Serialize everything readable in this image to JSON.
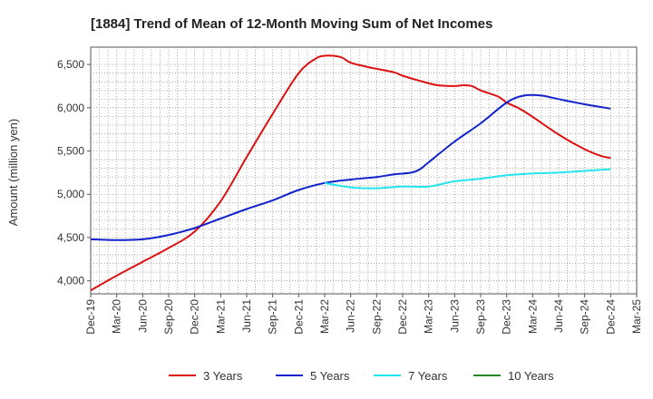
{
  "chart_data": {
    "type": "line",
    "title": "[1884]  Trend of Mean of 12-Month Moving Sum of Net Incomes",
    "ylabel": "Amount (million yen)",
    "xlabel": "",
    "ylim": [
      3850,
      6700
    ],
    "yticks": [
      4000,
      4500,
      5000,
      5500,
      6000,
      6500
    ],
    "ytick_labels": [
      "4,000",
      "4,500",
      "5,000",
      "5,500",
      "6,000",
      "6,500"
    ],
    "xtick_labels": [
      "Dec-19",
      "Mar-20",
      "Jun-20",
      "Sep-20",
      "Dec-20",
      "Mar-21",
      "Jun-21",
      "Sep-21",
      "Dec-21",
      "Mar-22",
      "Jun-22",
      "Sep-22",
      "Dec-22",
      "Mar-23",
      "Jun-23",
      "Sep-23",
      "Dec-23",
      "Mar-24",
      "Jun-24",
      "Sep-24",
      "Dec-24",
      "Mar-25"
    ],
    "grid": true,
    "legend_position": "bottom",
    "series": [
      {
        "name": "3 Years",
        "color": "#dd1111",
        "points": [
          [
            "Dec-19",
            3890
          ],
          [
            "Mar-20",
            4060
          ],
          [
            "Jun-20",
            4220
          ],
          [
            "Sep-20",
            4380
          ],
          [
            "Dec-20",
            4570
          ],
          [
            "Mar-21",
            4920
          ],
          [
            "Jun-21",
            5430
          ],
          [
            "Sep-21",
            5930
          ],
          [
            "Dec-21",
            6400
          ],
          [
            "Feb-22",
            6570
          ],
          [
            "Mar-22",
            6600
          ],
          [
            "Apr-22",
            6600
          ],
          [
            "May-22",
            6580
          ],
          [
            "Jun-22",
            6520
          ],
          [
            "Aug-22",
            6470
          ],
          [
            "Sep-22",
            6450
          ],
          [
            "Nov-22",
            6410
          ],
          [
            "Dec-22",
            6370
          ],
          [
            "Feb-23",
            6310
          ],
          [
            "Apr-23",
            6260
          ],
          [
            "Jun-23",
            6250
          ],
          [
            "Jul-23",
            6260
          ],
          [
            "Aug-23",
            6250
          ],
          [
            "Sep-23",
            6200
          ],
          [
            "Nov-23",
            6130
          ],
          [
            "Dec-23",
            6060
          ],
          [
            "Feb-24",
            5960
          ],
          [
            "Jun-24",
            5690
          ],
          [
            "Sep-24",
            5520
          ],
          [
            "Nov-24",
            5440
          ],
          [
            "Dec-24",
            5420
          ]
        ]
      },
      {
        "name": "5 Years",
        "color": "#1122cc",
        "points": [
          [
            "Dec-19",
            4480
          ],
          [
            "Mar-20",
            4470
          ],
          [
            "Jun-20",
            4480
          ],
          [
            "Sep-20",
            4530
          ],
          [
            "Dec-20",
            4610
          ],
          [
            "Mar-21",
            4720
          ],
          [
            "Jun-21",
            4830
          ],
          [
            "Sep-21",
            4930
          ],
          [
            "Dec-21",
            5050
          ],
          [
            "Mar-22",
            5130
          ],
          [
            "Jun-22",
            5170
          ],
          [
            "Sep-22",
            5200
          ],
          [
            "Nov-22",
            5230
          ],
          [
            "Jan-23",
            5250
          ],
          [
            "Feb-23",
            5290
          ],
          [
            "Mar-23",
            5370
          ],
          [
            "Jun-23",
            5610
          ],
          [
            "Sep-23",
            5820
          ],
          [
            "Dec-23",
            6060
          ],
          [
            "Feb-24",
            6140
          ],
          [
            "Apr-24",
            6140
          ],
          [
            "Jun-24",
            6100
          ],
          [
            "Sep-24",
            6040
          ],
          [
            "Dec-24",
            5990
          ]
        ]
      },
      {
        "name": "7 Years",
        "color": "#22e5ee",
        "points": [
          [
            "Mar-22",
            5130
          ],
          [
            "Jun-22",
            5080
          ],
          [
            "Sep-22",
            5070
          ],
          [
            "Dec-22",
            5090
          ],
          [
            "Mar-23",
            5090
          ],
          [
            "Jun-23",
            5150
          ],
          [
            "Sep-23",
            5180
          ],
          [
            "Dec-23",
            5220
          ],
          [
            "Mar-24",
            5240
          ],
          [
            "Jun-24",
            5250
          ],
          [
            "Sep-24",
            5270
          ],
          [
            "Dec-24",
            5290
          ]
        ]
      },
      {
        "name": "10 Years",
        "color": "#228822",
        "points": []
      }
    ]
  }
}
